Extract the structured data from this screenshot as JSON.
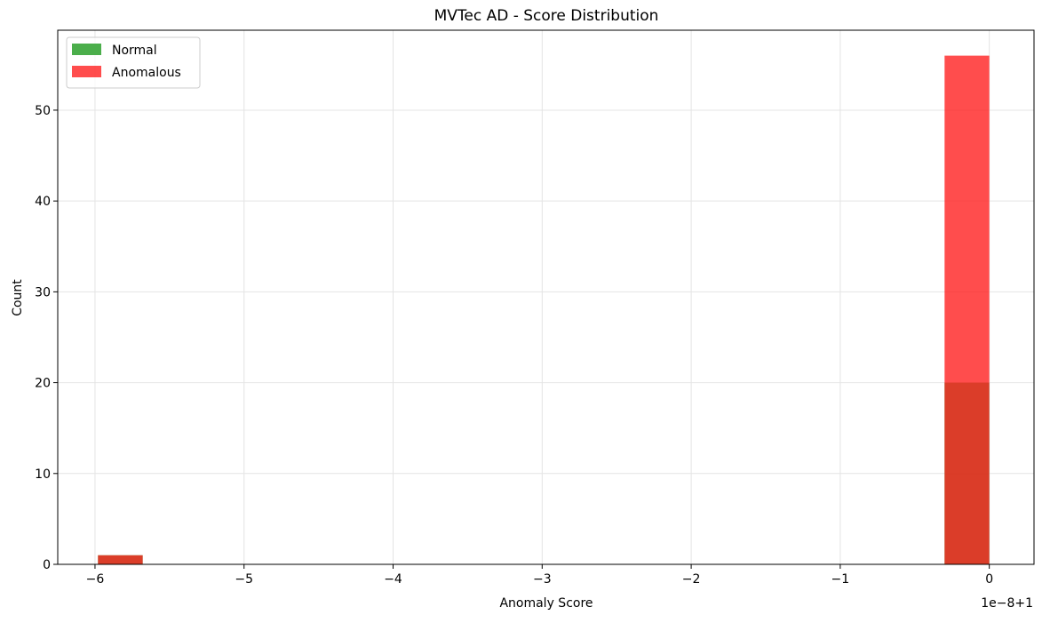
{
  "chart_data": {
    "type": "bar",
    "title": "MVTec AD - Score Distribution",
    "xlabel": "Anomaly Score",
    "ylabel": "Count",
    "x_offset_label": "1e−8+1",
    "xlim": [
      -6.25,
      0.3
    ],
    "ylim": [
      0,
      58.8
    ],
    "xticks": [
      -6,
      -5,
      -4,
      -3,
      -2,
      -1,
      0
    ],
    "xtick_labels": [
      "−6",
      "−5",
      "−4",
      "−3",
      "−2",
      "−1",
      "0"
    ],
    "yticks": [
      0,
      10,
      20,
      30,
      40,
      50
    ],
    "grid": true,
    "legend_position": "top-left",
    "series": [
      {
        "name": "Normal",
        "color": "#2ca02c",
        "opacity": 0.85,
        "bins": [
          {
            "x0": -5.98,
            "x1": -5.68,
            "value": 1
          },
          {
            "x0": -0.3,
            "x1": 0.0,
            "value": 20
          }
        ]
      },
      {
        "name": "Anomalous",
        "color": "#ff2020",
        "opacity": 0.8,
        "bins": [
          {
            "x0": -5.98,
            "x1": -5.68,
            "value": 1
          },
          {
            "x0": -0.3,
            "x1": 0.0,
            "value": 56
          }
        ]
      }
    ]
  }
}
